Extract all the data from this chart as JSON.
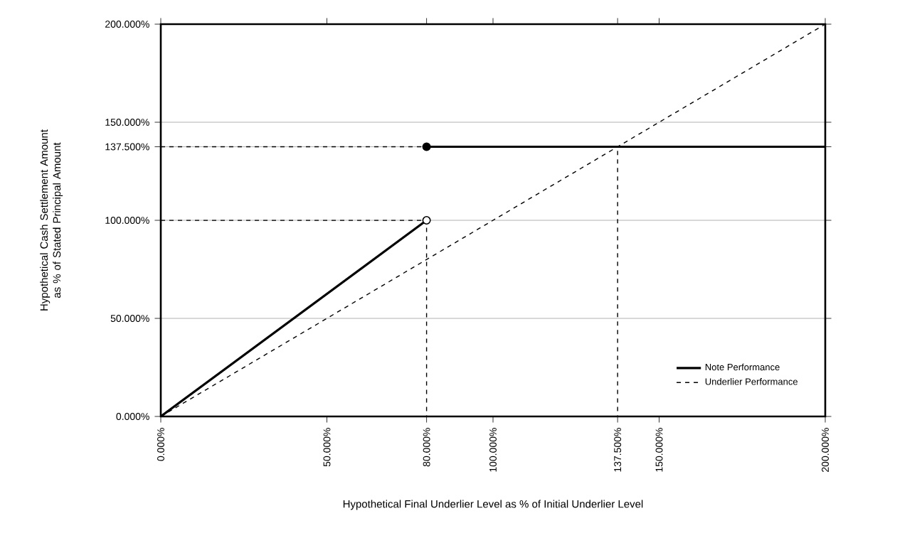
{
  "chart_data": {
    "type": "line",
    "xlabel": "Hypothetical Final Underlier Level as % of Initial Underlier Level",
    "ylabel": "Hypothetical Cash Settlement Amount as % of Stated Principal Amount",
    "xlim": [
      0,
      200
    ],
    "ylim": [
      0,
      200
    ],
    "xticks": [
      {
        "value": 0,
        "label": "0.000%"
      },
      {
        "value": 50,
        "label": "50.000%"
      },
      {
        "value": 80,
        "label": "80.000%"
      },
      {
        "value": 100,
        "label": "100.000%"
      },
      {
        "value": 137.5,
        "label": "137.500%"
      },
      {
        "value": 150,
        "label": "150.000%"
      },
      {
        "value": 200,
        "label": "200.000%"
      }
    ],
    "yticks": [
      {
        "value": 0,
        "label": "0.000%"
      },
      {
        "value": 50,
        "label": "50.000%"
      },
      {
        "value": 100,
        "label": "100.000%"
      },
      {
        "value": 137.5,
        "label": "137.500%"
      },
      {
        "value": 150,
        "label": "150.000%"
      },
      {
        "value": 200,
        "label": "200.000%"
      }
    ],
    "grid": "y",
    "legend": "bottom right",
    "series": [
      {
        "line_style": "dashed",
        "color": "#000000",
        "x": [
          0,
          137.5,
          137.5
        ],
        "values": [
          137.5,
          137.5,
          0
        ]
      },
      {
        "line_style": "dashed",
        "color": "#000000",
        "x": [
          0,
          80,
          80
        ],
        "values": [
          100,
          100,
          0
        ]
      },
      {
        "name": "Note Performance",
        "line_style": "solid",
        "color": "#000000",
        "x": [
          0,
          80
        ],
        "values": [
          0,
          100
        ]
      },
      {
        "line_style": "solid",
        "color": "#000000",
        "x": [
          80,
          200
        ],
        "values": [
          137.5,
          137.5
        ]
      },
      {
        "name": "Underlier Performance",
        "line_style": "dashed",
        "color": "#000000",
        "x": [
          0,
          200
        ],
        "values": [
          0,
          200
        ]
      },
      {
        "type": "scatter",
        "marker": "circle",
        "color": "#ffffff",
        "x": [
          80
        ],
        "values": [
          100
        ]
      },
      {
        "type": "scatter",
        "marker": "circle",
        "color": "#000000",
        "x": [
          80
        ],
        "values": [
          137.5
        ]
      }
    ]
  }
}
